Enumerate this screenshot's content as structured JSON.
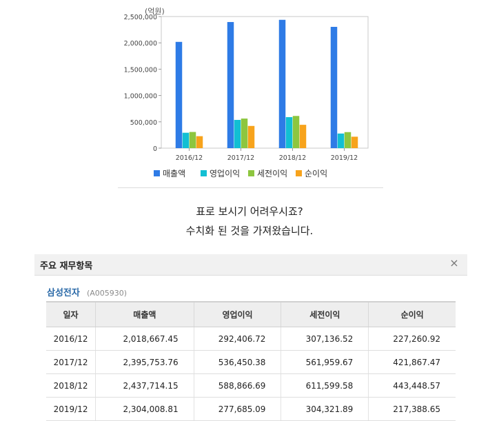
{
  "chart_data": {
    "type": "bar",
    "unit_label": "(억원)",
    "categories": [
      "2016/12",
      "2017/12",
      "2018/12",
      "2019/12"
    ],
    "series": [
      {
        "name": "매출액",
        "color": "#2e7be6",
        "values": [
          2018667.45,
          2395753.76,
          2437714.15,
          2304008.81
        ]
      },
      {
        "name": "영업이익",
        "color": "#12bfd3",
        "values": [
          292406.72,
          536450.38,
          588866.69,
          277685.09
        ]
      },
      {
        "name": "세전이익",
        "color": "#8dc63f",
        "values": [
          307136.52,
          561959.67,
          611599.58,
          304321.89
        ]
      },
      {
        "name": "순이익",
        "color": "#f7a31c",
        "values": [
          227260.92,
          421867.47,
          443448.57,
          217388.65
        ]
      }
    ],
    "yticks": [
      "0",
      "500,000",
      "1,000,000",
      "1,500,000",
      "2,000,000",
      "2,500,000"
    ],
    "ylim": [
      0,
      2500000
    ],
    "grid": false,
    "legend": "bottom"
  },
  "caption": {
    "line1": "표로 보시기 어려우시죠?",
    "line2": "수치화 된 것을 가져왔습니다."
  },
  "dialog": {
    "title": "주요 재무항목",
    "close_icon": "×",
    "company_name": "삼성전자",
    "company_code": "(A005930)",
    "columns": [
      "일자",
      "매출액",
      "영업이익",
      "세전이익",
      "순이익"
    ],
    "rows": [
      [
        "2016/12",
        "2,018,667.45",
        "292,406.72",
        "307,136.52",
        "227,260.92"
      ],
      [
        "2017/12",
        "2,395,753.76",
        "536,450.38",
        "561,959.67",
        "421,867.47"
      ],
      [
        "2018/12",
        "2,437,714.15",
        "588,866.69",
        "611,599.58",
        "443,448.57"
      ],
      [
        "2019/12",
        "2,304,008.81",
        "277,685.09",
        "304,321.89",
        "217,388.65"
      ]
    ]
  }
}
